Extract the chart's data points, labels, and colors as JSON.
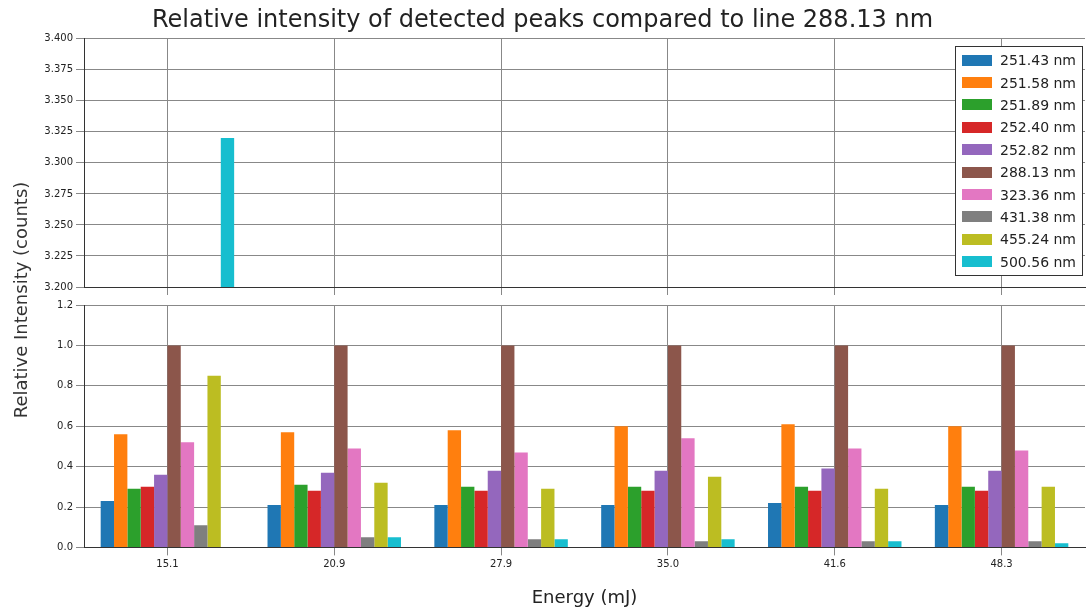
{
  "chart_data": [
    {
      "type": "bar",
      "title": "Relative intensity of detected peaks compared to line 288.13 nm",
      "categories": [
        "15.1",
        "20.9",
        "27.9",
        "35.0",
        "41.6",
        "48.3"
      ],
      "series": [
        {
          "name": "251.43 nm",
          "color": "#1f77b4",
          "values": [
            null,
            null,
            null,
            null,
            null,
            null
          ]
        },
        {
          "name": "251.58 nm",
          "color": "#ff7f0e",
          "values": [
            null,
            null,
            null,
            null,
            null,
            null
          ]
        },
        {
          "name": "251.89 nm",
          "color": "#2ca02c",
          "values": [
            null,
            null,
            null,
            null,
            null,
            null
          ]
        },
        {
          "name": "252.40 nm",
          "color": "#d62728",
          "values": [
            null,
            null,
            null,
            null,
            null,
            null
          ]
        },
        {
          "name": "252.82 nm",
          "color": "#9467bd",
          "values": [
            null,
            null,
            null,
            null,
            null,
            null
          ]
        },
        {
          "name": "288.13 nm",
          "color": "#8c564b",
          "values": [
            null,
            null,
            null,
            null,
            null,
            null
          ]
        },
        {
          "name": "323.36 nm",
          "color": "#e377c2",
          "values": [
            null,
            null,
            null,
            null,
            null,
            null
          ]
        },
        {
          "name": "431.38 nm",
          "color": "#7f7f7f",
          "values": [
            null,
            null,
            null,
            null,
            null,
            null
          ]
        },
        {
          "name": "455.24 nm",
          "color": "#bcbd22",
          "values": [
            null,
            null,
            null,
            null,
            null,
            null
          ]
        },
        {
          "name": "500.56 nm",
          "color": "#17becf",
          "values": [
            3.32,
            null,
            null,
            null,
            null,
            null
          ]
        }
      ],
      "ylim": [
        3.2,
        3.4
      ],
      "yticks": [
        {
          "value": 3.2,
          "label": "3.200"
        },
        3.225,
        {
          "value": 3.25,
          "label": "3.250"
        },
        3.275,
        {
          "value": 3.3,
          "label": "3.300"
        },
        3.325,
        {
          "value": 3.35,
          "label": "3.350"
        },
        3.375,
        {
          "value": 3.4,
          "label": "3.400"
        }
      ],
      "grid": true,
      "legend": "top right",
      "tick_labels": "y"
    },
    {
      "type": "bar",
      "xlabel": "Energy (mJ)",
      "ylabel": "Relative Intensity (counts)",
      "categories": [
        "15.1",
        "20.9",
        "27.9",
        "35.0",
        "41.6",
        "48.3"
      ],
      "series": [
        {
          "color": "#1f77b4",
          "values": [
            0.23,
            0.21,
            0.21,
            0.21,
            0.22,
            0.21
          ]
        },
        {
          "color": "#ff7f0e",
          "values": [
            0.56,
            0.57,
            0.58,
            0.6,
            0.61,
            0.6
          ]
        },
        {
          "color": "#2ca02c",
          "values": [
            0.29,
            0.31,
            0.3,
            0.3,
            0.3,
            0.3
          ]
        },
        {
          "color": "#d62728",
          "values": [
            0.3,
            0.28,
            0.28,
            0.28,
            0.28,
            0.28
          ]
        },
        {
          "color": "#9467bd",
          "values": [
            0.36,
            0.37,
            0.38,
            0.38,
            0.39,
            0.38
          ]
        },
        {
          "color": "#8c564b",
          "values": [
            1.0,
            1.0,
            1.0,
            1.0,
            1.0,
            1.0
          ]
        },
        {
          "color": "#e377c2",
          "values": [
            0.52,
            0.49,
            0.47,
            0.54,
            0.49,
            0.48
          ]
        },
        {
          "color": "#7f7f7f",
          "values": [
            0.11,
            0.05,
            0.04,
            0.03,
            0.03,
            0.03
          ]
        },
        {
          "color": "#bcbd22",
          "values": [
            0.85,
            0.32,
            0.29,
            0.35,
            0.29,
            0.3
          ]
        },
        {
          "color": "#17becf",
          "values": [
            null,
            0.05,
            0.04,
            0.04,
            0.03,
            0.02
          ]
        }
      ],
      "ylim": [
        0,
        1.2
      ],
      "yticks": [
        {
          "value": 0,
          "label": "0.0"
        },
        0.2,
        0.4,
        0.6,
        0.8,
        {
          "value": 1,
          "label": "1.0"
        },
        1.2
      ],
      "grid": true
    }
  ]
}
